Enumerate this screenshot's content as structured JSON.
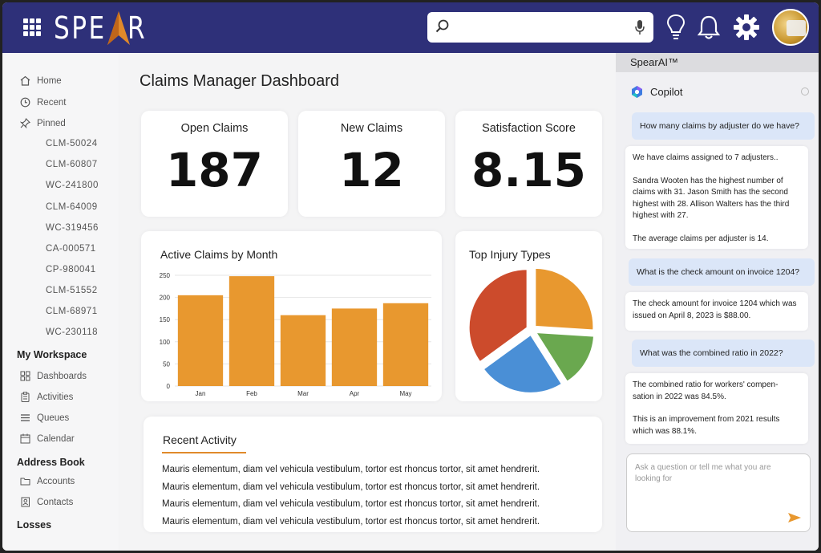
{
  "header": {
    "logo_prefix": "SPE",
    "logo_suffix": "R",
    "search": {
      "value": "",
      "placeholder": ""
    },
    "icons": [
      "apps-grid-icon",
      "search-icon",
      "microphone-icon",
      "lightbulb-icon",
      "bell-icon",
      "gear-icon",
      "avatar"
    ]
  },
  "sidebar": {
    "nav": [
      {
        "label": "Home",
        "icon": "home-icon"
      },
      {
        "label": "Recent",
        "icon": "clock-icon"
      },
      {
        "label": "Pinned",
        "icon": "pin-icon"
      }
    ],
    "pinned": [
      "CLM-50024",
      "CLM-60807",
      "WC-241800",
      "CLM-64009",
      "WC-319456",
      "CA-000571",
      "CP-980041",
      "CLM-51552",
      "CLM-68971",
      "WC-230118"
    ],
    "workspace_heading": "My Workspace",
    "workspace": [
      {
        "label": "Dashboards",
        "icon": "dashboard-icon"
      },
      {
        "label": "Activities",
        "icon": "clipboard-icon"
      },
      {
        "label": "Queues",
        "icon": "list-icon"
      },
      {
        "label": "Calendar",
        "icon": "calendar-icon"
      }
    ],
    "addressbook_heading": "Address Book",
    "addressbook": [
      {
        "label": "Accounts",
        "icon": "folder-icon"
      },
      {
        "label": "Contacts",
        "icon": "contacts-icon"
      }
    ],
    "losses_heading": "Losses"
  },
  "main": {
    "title": "Claims Manager Dashboard",
    "kpis": [
      {
        "label": "Open Claims",
        "value": "187"
      },
      {
        "label": "New Claims",
        "value": "12"
      },
      {
        "label": "Satisfaction Score",
        "value": "8.15"
      }
    ],
    "bar_title": "Active Claims by Month",
    "pie_title": "Top Injury Types",
    "activity_title": "Recent Activity",
    "activity": [
      "Mauris elementum, diam vel vehicula vestibulum, tortor est rhoncus tortor, sit amet hendrerit.",
      "Mauris elementum, diam vel vehicula vestibulum, tortor est rhoncus tortor, sit amet hendrerit.",
      "Mauris elementum, diam vel vehicula vestibulum, tortor est rhoncus tortor, sit amet hendrerit.",
      "Mauris elementum, diam vel vehicula vestibulum, tortor est rhoncus tortor, sit amet hendrerit."
    ]
  },
  "chart_data": [
    {
      "type": "bar",
      "title": "Active Claims by Month",
      "categories": [
        "Jan",
        "Feb",
        "Mar",
        "Apr",
        "May"
      ],
      "values": [
        205,
        248,
        160,
        175,
        187
      ],
      "yticks": [
        0,
        50,
        100,
        150,
        200,
        250
      ],
      "ylim": [
        0,
        250
      ],
      "grid": true,
      "color": "#e8982f"
    },
    {
      "type": "pie",
      "title": "Top Injury Types",
      "values": [
        26,
        15,
        24,
        35
      ],
      "colors": [
        "#e8982f",
        "#6aa84f",
        "#4a8fd6",
        "#cc4b2c"
      ],
      "exploded": true
    }
  ],
  "copilot": {
    "panel_title": "SpearAI™",
    "name": "Copilot",
    "messages": [
      {
        "role": "user",
        "text": "How many claims by adjuster do we have?"
      },
      {
        "role": "bot",
        "paragraphs": [
          "We have claims assigned to 7 adjusters..",
          "Sandra Wooten has the highest number of claims with 31. Jason Smith has the second highest with 28. Allison Walters has the third highest with 27.",
          "The average claims per adjuster is 14."
        ]
      },
      {
        "role": "user",
        "text": "What is the check amount on invoice 1204?"
      },
      {
        "role": "bot",
        "paragraphs": [
          "The check amount for invoice 1204 which was issued on April 8, 2023 is $88.00."
        ]
      },
      {
        "role": "user",
        "text": "What was the combined ratio in 2022?"
      },
      {
        "role": "bot",
        "paragraphs": [
          "The combined ratio for workers' compen- sation in 2022 was 84.5%.",
          "This is an improvement from 2021 results which was 88.1%."
        ]
      }
    ],
    "input_placeholder": "Ask a question or tell me what you are looking for"
  },
  "colors": {
    "header": "#2e3079",
    "accent": "#e08a2b",
    "user_bubble": "#dbe6f8"
  }
}
